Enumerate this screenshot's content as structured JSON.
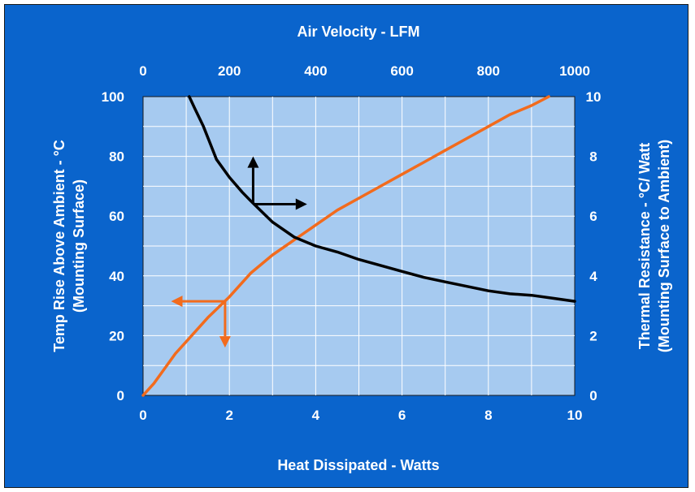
{
  "chart_data": {
    "type": "line",
    "xlabel": "Heat Dissipated - Watts",
    "x2label": "Air Velocity - LFM",
    "ylabel": [
      "Temp Rise Above Ambient - °C",
      "(Mounting Surface)"
    ],
    "y2label": [
      "Thermal Resistance - °C/ Watt",
      "(Mounting Surface to Ambient)"
    ],
    "xlim": [
      0,
      10
    ],
    "x2lim": [
      0,
      1000
    ],
    "ylim": [
      0,
      100
    ],
    "y2lim": [
      0,
      10
    ],
    "x_ticks": [
      "0",
      "2",
      "4",
      "6",
      "8",
      "10"
    ],
    "x2_ticks": [
      "0",
      "200",
      "400",
      "600",
      "800",
      "1000"
    ],
    "y_ticks": [
      "0",
      "20",
      "40",
      "60",
      "80",
      "100"
    ],
    "y2_ticks": [
      "0",
      "2",
      "4",
      "6",
      "8",
      "10"
    ],
    "grid": true,
    "series": [
      {
        "axes": "bottom-left",
        "color": "#F26B1D",
        "x": [
          0,
          0.25,
          0.5,
          0.75,
          1,
          1.5,
          2,
          2.5,
          3,
          3.5,
          4,
          4.5,
          5,
          5.5,
          6,
          6.5,
          7,
          7.5,
          8,
          8.5,
          9,
          9.4
        ],
        "y": [
          0,
          4,
          9,
          14,
          18,
          26,
          33,
          41,
          47,
          52,
          57,
          62,
          66,
          70,
          74,
          78,
          82,
          86,
          90,
          94,
          97,
          100
        ]
      },
      {
        "axes": "top-right",
        "color": "#000000",
        "x": [
          107,
          120,
          140,
          170,
          200,
          230,
          250,
          300,
          350,
          400,
          450,
          500,
          550,
          600,
          650,
          700,
          750,
          800,
          850,
          900,
          950,
          1000
        ],
        "y": [
          10,
          9.6,
          9,
          7.9,
          7.3,
          6.8,
          6.5,
          5.8,
          5.3,
          5,
          4.8,
          4.55,
          4.35,
          4.15,
          3.95,
          3.8,
          3.65,
          3.5,
          3.4,
          3.35,
          3.25,
          3.15
        ]
      }
    ],
    "annotations": [
      {
        "color": "#000000",
        "from": [
          2.55,
          64
        ],
        "to": [
          2.55,
          80
        ],
        "axes": "bottom-left"
      },
      {
        "color": "#000000",
        "from": [
          2.55,
          64
        ],
        "to": [
          3.8,
          64
        ],
        "axes": "bottom-left"
      },
      {
        "color": "#F26B1D",
        "from": [
          1.9,
          31.5
        ],
        "to": [
          0.65,
          31.5
        ],
        "axes": "bottom-left"
      },
      {
        "color": "#F26B1D",
        "from": [
          1.9,
          31.5
        ],
        "to": [
          1.9,
          16
        ],
        "axes": "bottom-left"
      }
    ]
  }
}
